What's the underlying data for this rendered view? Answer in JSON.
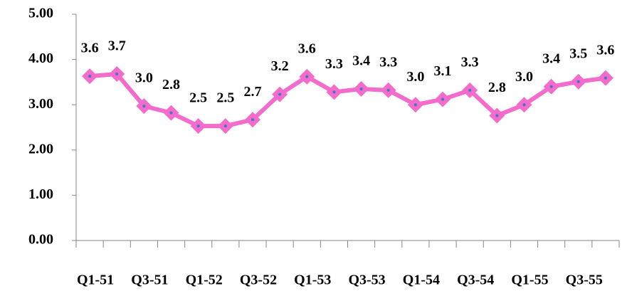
{
  "chart_data": {
    "type": "line",
    "categories": [
      "Q1-51",
      null,
      "Q3-51",
      null,
      "Q1-52",
      null,
      "Q3-52",
      null,
      "Q1-53",
      null,
      "Q3-53",
      null,
      "Q1-54",
      null,
      "Q3-54",
      null,
      "Q1-55",
      null,
      "Q3-55",
      null
    ],
    "values": [
      3.63,
      3.68,
      2.97,
      2.82,
      2.53,
      2.53,
      2.67,
      3.23,
      3.62,
      3.28,
      3.35,
      3.32,
      3.0,
      3.12,
      3.32,
      2.76,
      3.0,
      3.4,
      3.51,
      3.59
    ],
    "value_labels": [
      "3.6",
      "3.7",
      "3.0",
      "2.8",
      "2.5",
      "2.5",
      "2.7",
      "3.2",
      "3.6",
      "3.3",
      "3.4",
      "3.3",
      "3.0",
      "3.1",
      "3.3",
      "2.8",
      "3.0",
      "3.4",
      "3.5",
      "3.6"
    ],
    "color": "#f36bcb",
    "ylim": [
      0,
      5
    ],
    "yticks": [
      {
        "value": 0,
        "label": "0.00"
      },
      {
        "value": 1,
        "label": "1.00"
      },
      {
        "value": 2,
        "label": "2.00"
      },
      {
        "value": 3,
        "label": "3.00"
      },
      {
        "value": 4,
        "label": "4.00"
      },
      {
        "value": 5,
        "label": "5.00"
      }
    ],
    "grid": false
  }
}
